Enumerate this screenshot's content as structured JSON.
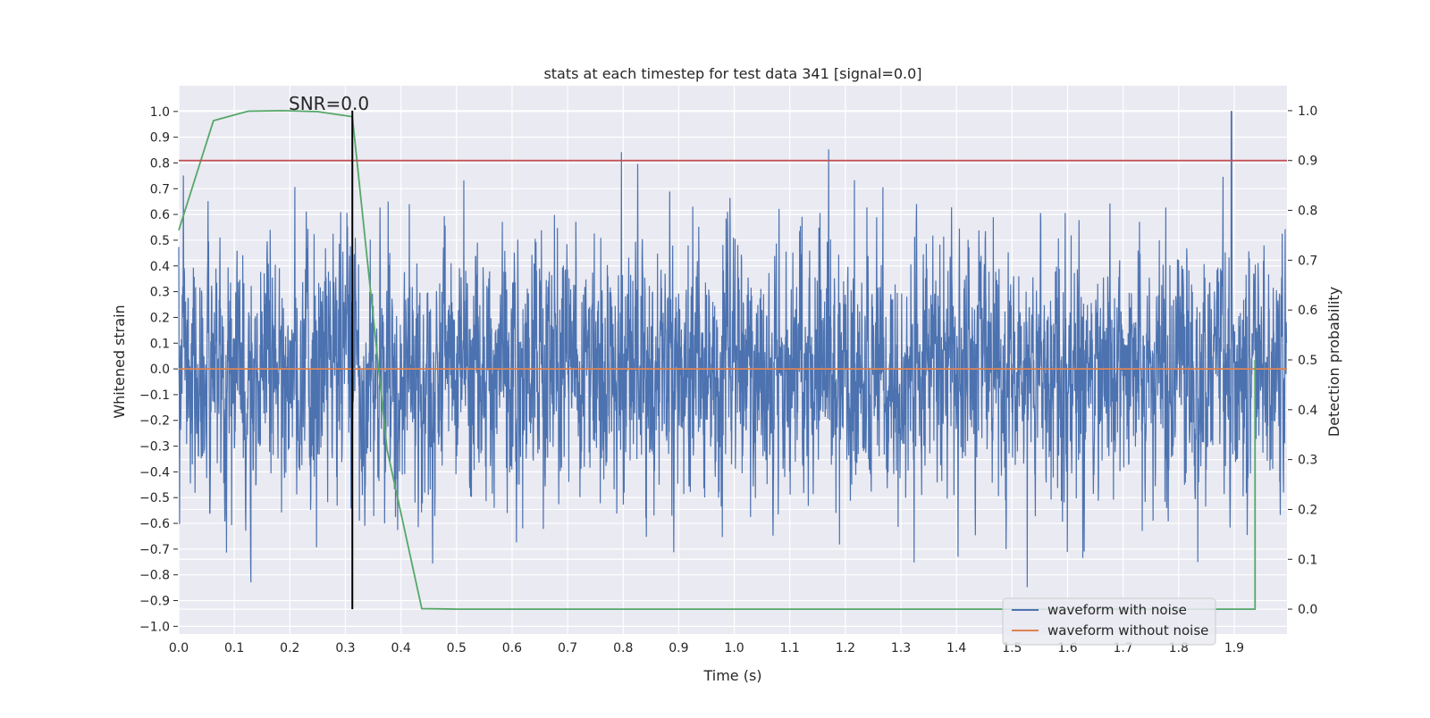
{
  "chart_data": {
    "type": "line",
    "title": "stats at each timestep for test data 341 [signal=0.0]",
    "xlabel": "Time (s)",
    "ylabel": "Whitened strain",
    "ylabel_right": "Detection probability",
    "xlim": [
      0.0,
      1.995
    ],
    "ylim": [
      -1.03,
      1.1
    ],
    "ylim_right": [
      -0.05,
      1.05
    ],
    "x_ticks": [
      0.0,
      0.1,
      0.2,
      0.3,
      0.4,
      0.5,
      0.6,
      0.7,
      0.8,
      0.9,
      1.0,
      1.1,
      1.2,
      1.3,
      1.4,
      1.5,
      1.6,
      1.7,
      1.8,
      1.9
    ],
    "x_tick_labels": [
      "0.0",
      "0.1",
      "0.2",
      "0.3",
      "0.4",
      "0.5",
      "0.6",
      "0.7",
      "0.8",
      "0.9",
      "1.0",
      "1.1",
      "1.2",
      "1.3",
      "1.4",
      "1.5",
      "1.6",
      "1.7",
      "1.8",
      "1.9"
    ],
    "y_ticks": [
      -1.0,
      -0.9,
      -0.8,
      -0.7,
      -0.6,
      -0.5,
      -0.4,
      -0.3,
      -0.2,
      -0.1,
      0.0,
      0.1,
      0.2,
      0.3,
      0.4,
      0.5,
      0.6,
      0.7,
      0.8,
      0.9,
      1.0
    ],
    "y_tick_labels": [
      "−1.0",
      "−0.9",
      "−0.8",
      "−0.7",
      "−0.6",
      "−0.5",
      "−0.4",
      "−0.3",
      "−0.2",
      "−0.1",
      "0.0",
      "0.1",
      "0.2",
      "0.3",
      "0.4",
      "0.5",
      "0.6",
      "0.7",
      "0.8",
      "0.9",
      "1.0"
    ],
    "y_right_ticks": [
      0.0,
      0.1,
      0.2,
      0.3,
      0.4,
      0.5,
      0.6,
      0.7,
      0.8,
      0.9,
      1.0
    ],
    "y_right_tick_labels": [
      "0.0",
      "0.1",
      "0.2",
      "0.3",
      "0.4",
      "0.5",
      "0.6",
      "0.7",
      "0.8",
      "0.9",
      "1.0"
    ],
    "grid": true,
    "legend_position": "lower-right",
    "annotation": {
      "text": "SNR=0.0",
      "x": 0.2,
      "y": 1.0
    },
    "series": [
      {
        "name": "waveform with noise",
        "color": "#4c72b0",
        "axis": "left",
        "kind": "noise",
        "sample_rate": 2048,
        "std": 0.24,
        "clip": [
          -1.0,
          1.0
        ],
        "peak": {
          "x": 1.895,
          "y": 1.0
        }
      },
      {
        "name": "waveform without noise",
        "color": "#dd8452",
        "axis": "left",
        "x": [
          0.0,
          1.995
        ],
        "y": [
          0.0,
          0.0
        ]
      },
      {
        "color": "#55a868",
        "axis": "right",
        "x": [
          0.0,
          0.0625,
          0.125,
          0.1875,
          0.25,
          0.3125,
          0.375,
          0.4375,
          0.5,
          0.5625,
          0.625,
          0.6875,
          0.75,
          0.8125,
          0.875,
          0.9375,
          1.0,
          1.0625,
          1.125,
          1.1875,
          1.25,
          1.3125,
          1.375,
          1.4375,
          1.5,
          1.5625,
          1.625,
          1.6875,
          1.75,
          1.8125,
          1.875,
          1.9375,
          1.9375
        ],
        "y": [
          0.76,
          0.98,
          0.999,
          1.0,
          0.998,
          0.988,
          0.32,
          0.001,
          0.0,
          0.0,
          0.0,
          0.0,
          0.0,
          0.0,
          0.0,
          0.0,
          0.0,
          0.0,
          0.0,
          0.0,
          0.0,
          0.0,
          0.0,
          0.0,
          0.0,
          0.0,
          0.0,
          0.0,
          0.0,
          0.0,
          0.0,
          0.0,
          0.5
        ]
      },
      {
        "color": "#c44e52",
        "axis": "right",
        "x": [
          0.0,
          1.995
        ],
        "y": [
          0.9,
          0.9
        ]
      },
      {
        "color": "#000000",
        "axis": "right",
        "kind": "vline",
        "x": [
          0.3125,
          0.3125
        ],
        "y": [
          0.0,
          1.0
        ]
      }
    ]
  }
}
